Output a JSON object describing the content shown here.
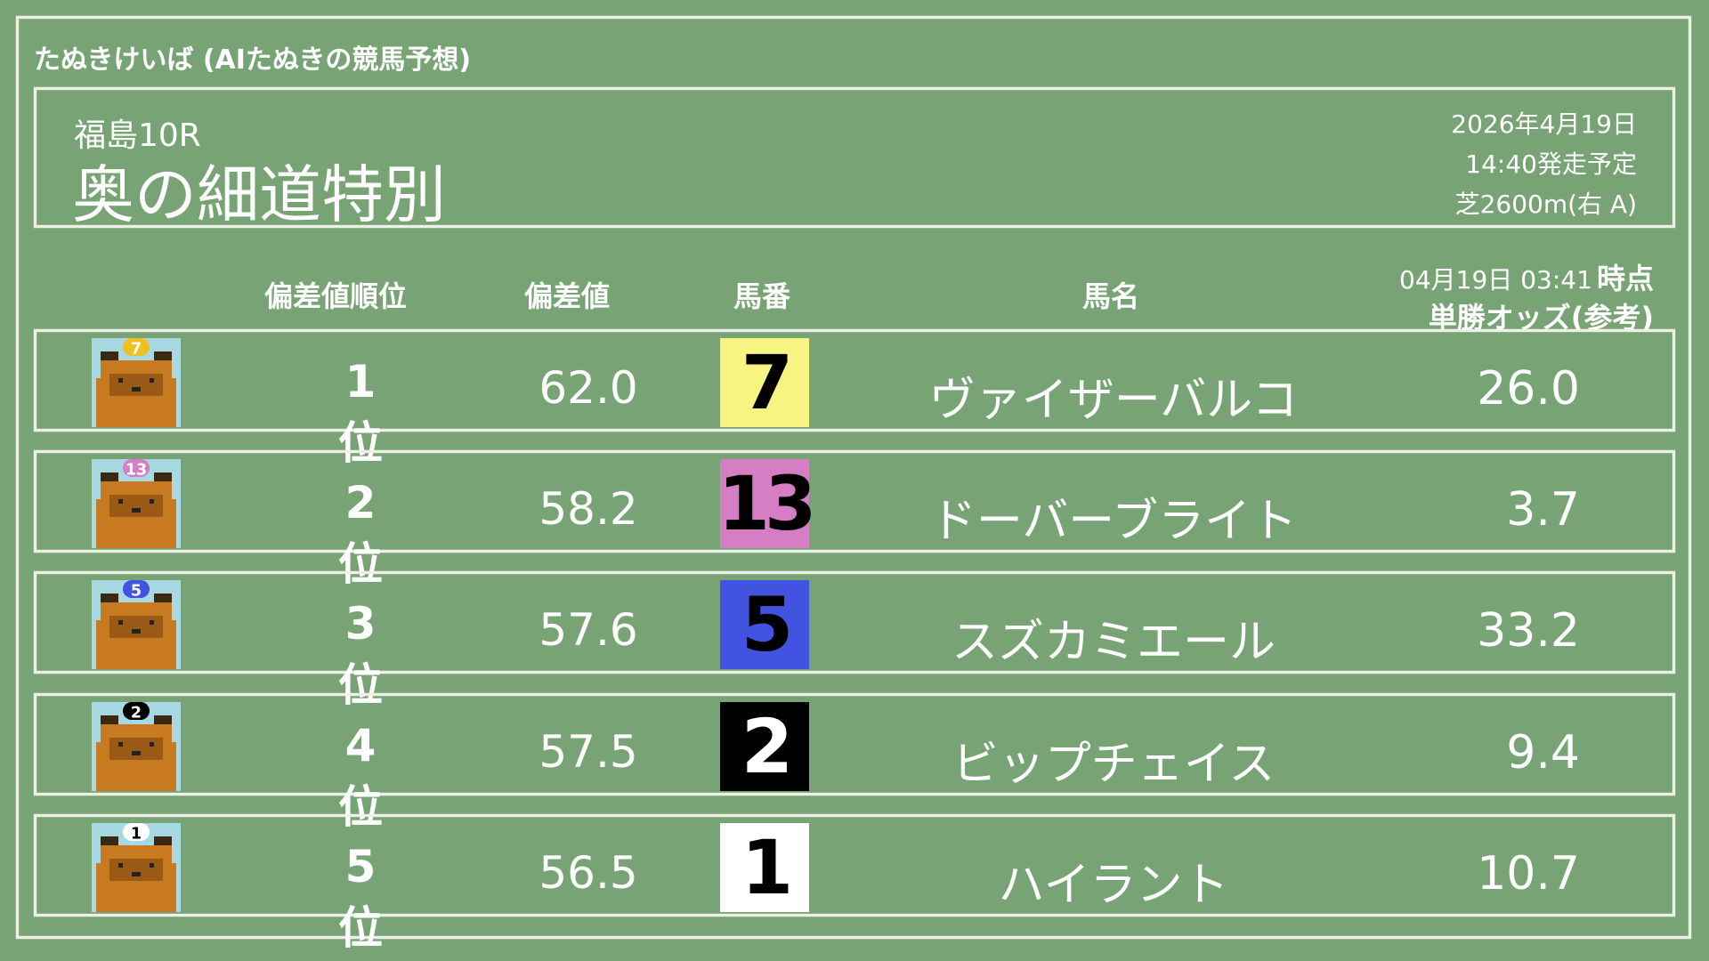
{
  "site_title": "たぬきけいば (AIたぬきの競馬予想)",
  "race": {
    "venue": "福島10R",
    "name": "奥の細道特別",
    "date": "2026年4月19日",
    "post_time": "14:40発走予定",
    "course": "芝2600m(右 A)"
  },
  "columns": {
    "rank": "偏差値順位",
    "score": "偏差値",
    "number": "馬番",
    "name": "馬名",
    "odds_time": "04月19日 03:41",
    "odds_time_suffix": "時点",
    "odds": "単勝オッズ(参考)"
  },
  "rows": [
    {
      "rank": "1位",
      "score": "62.0",
      "number": "7",
      "name": "ヴァイザーバルコ",
      "odds": "26.0",
      "color": "#f8f484",
      "text_color": "#000000"
    },
    {
      "rank": "2位",
      "score": "58.2",
      "number": "13",
      "name": "ドーバーブライト",
      "odds": "3.7",
      "color": "#d67ec4",
      "text_color": "#000000"
    },
    {
      "rank": "3位",
      "score": "57.6",
      "number": "5",
      "name": "スズカミエール",
      "odds": "33.2",
      "color": "#4253e0",
      "text_color": "#000000"
    },
    {
      "rank": "4位",
      "score": "57.5",
      "number": "2",
      "name": "ビップチェイス",
      "odds": "9.4",
      "color": "#000000",
      "text_color": "#ffffff"
    },
    {
      "rank": "5位",
      "score": "56.5",
      "number": "1",
      "name": "ハイラント",
      "odds": "10.7",
      "color": "#ffffff",
      "text_color": "#000000"
    }
  ]
}
